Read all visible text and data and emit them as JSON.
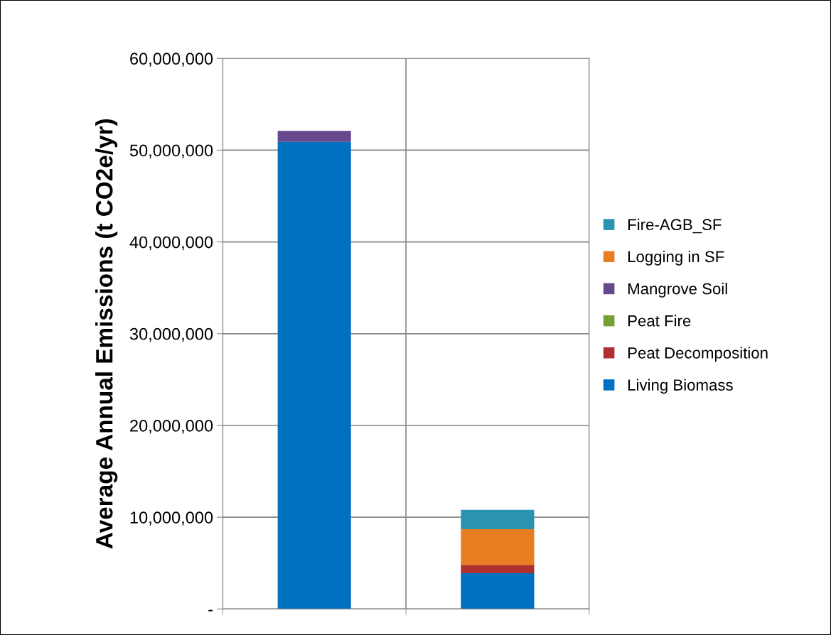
{
  "chart_data": {
    "type": "bar",
    "stacked": true,
    "ylabel": "Average Annual Emissions (t CO2e/yr)",
    "categories": [
      null,
      null
    ],
    "series": [
      {
        "name": "Living Biomass",
        "color": "#0070c0",
        "values": [
          50900000,
          3900000
        ]
      },
      {
        "name": "Peat Decomposition",
        "color": "#b03030",
        "values": [
          0,
          900000
        ]
      },
      {
        "name": "Peat Fire",
        "color": "#77a033",
        "values": [
          0,
          0
        ]
      },
      {
        "name": "Mangrove Soil",
        "color": "#66488f",
        "values": [
          1200000,
          0
        ]
      },
      {
        "name": "Logging in SF",
        "color": "#e87d22",
        "values": [
          0,
          3900000
        ]
      },
      {
        "name": "Fire-AGB_SF",
        "color": "#2a93b0",
        "values": [
          0,
          2100000
        ]
      }
    ],
    "ylim": [
      0,
      60000000
    ],
    "yticks": [
      {
        "value": 0,
        "label": "-"
      },
      {
        "value": 10000000,
        "label": "10,000,000"
      },
      {
        "value": 20000000,
        "label": "20,000,000"
      },
      {
        "value": 30000000,
        "label": "30,000,000"
      },
      {
        "value": 40000000,
        "label": "40,000,000"
      },
      {
        "value": 50000000,
        "label": "50,000,000"
      },
      {
        "value": 60000000,
        "label": "60,000,000"
      }
    ],
    "grid": true,
    "legend": "right"
  }
}
